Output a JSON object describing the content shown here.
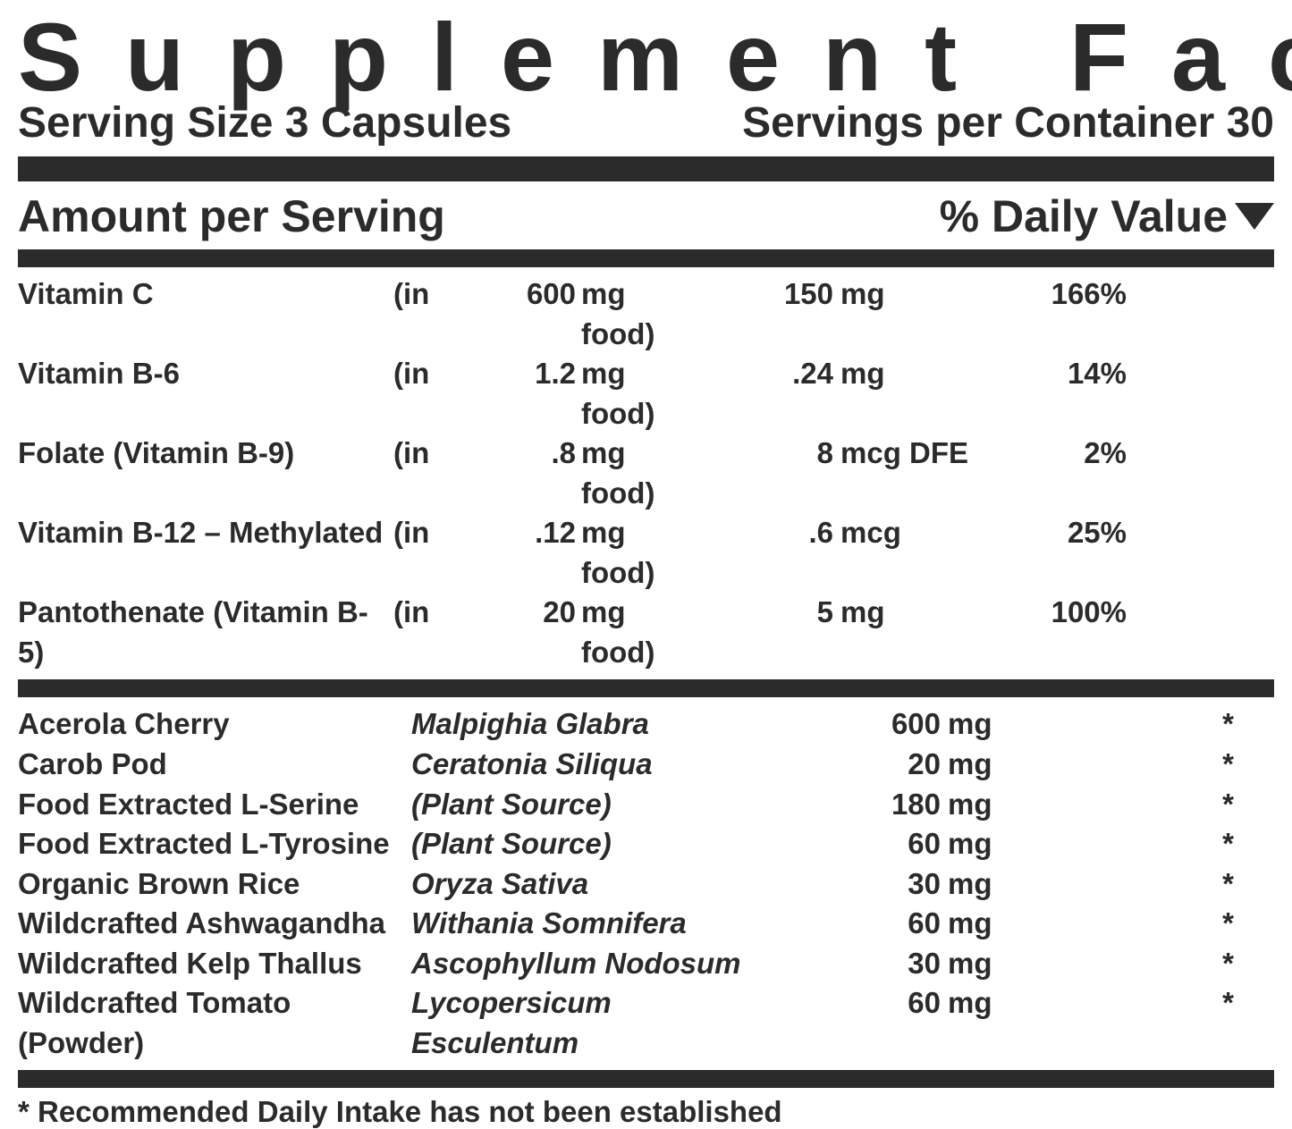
{
  "title": "Supplement Facts",
  "serving_size_label": "Serving Size 3 Capsules",
  "servings_per_container_label": "Servings per Container 30",
  "amount_per_serving_label": "Amount per Serving",
  "daily_value_label": "% Daily Value",
  "nutrients": [
    {
      "name": "Vitamin C",
      "in": "(in",
      "food_amount": "600",
      "food_label": "mg food)",
      "amount": "150",
      "unit": "mg",
      "dv": "166%"
    },
    {
      "name": "Vitamin B-6",
      "in": "(in",
      "food_amount": "1.2",
      "food_label": "mg food)",
      "amount": ".24",
      "unit": "mg",
      "dv": "14%"
    },
    {
      "name": "Folate (Vitamin B-9)",
      "in": "(in",
      "food_amount": ".8",
      "food_label": "mg food)",
      "amount": "8",
      "unit": "mcg DFE",
      "dv": "2%"
    },
    {
      "name": "Vitamin B-12 – Methylated",
      "in": "(in",
      "food_amount": ".12",
      "food_label": "mg food)",
      "amount": ".6",
      "unit": "mcg",
      "dv": "25%"
    },
    {
      "name": "Pantothenate (Vitamin B-5)",
      "in": "(in",
      "food_amount": "20",
      "food_label": "mg food)",
      "amount": "5",
      "unit": "mg",
      "dv": "100%"
    }
  ],
  "ingredients": [
    {
      "name": "Acerola Cherry",
      "latin": "Malpighia Glabra",
      "amount": "600",
      "unit": "mg",
      "dv": "*"
    },
    {
      "name": "Carob Pod",
      "latin": "Ceratonia Siliqua",
      "amount": "20",
      "unit": "mg",
      "dv": "*"
    },
    {
      "name": "Food Extracted L-Serine",
      "latin": "(Plant Source)",
      "amount": "180",
      "unit": "mg",
      "dv": "*"
    },
    {
      "name": "Food Extracted L-Tyrosine",
      "latin": "(Plant Source)",
      "amount": "60",
      "unit": "mg",
      "dv": "*"
    },
    {
      "name": "Organic Brown Rice",
      "latin": "Oryza Sativa",
      "amount": "30",
      "unit": "mg",
      "dv": "*"
    },
    {
      "name": "Wildcrafted Ashwagandha",
      "latin": "Withania Somnifera",
      "amount": "60",
      "unit": "mg",
      "dv": "*"
    },
    {
      "name": "Wildcrafted Kelp Thallus",
      "latin": "Ascophyllum Nodosum",
      "amount": "30",
      "unit": "mg",
      "dv": "*"
    },
    {
      "name": "Wildcrafted Tomato (Powder)",
      "latin": "Lycopersicum Esculentum",
      "amount": "60",
      "unit": "mg",
      "dv": "*"
    }
  ],
  "footnote": "* Recommended Daily Intake has not been established",
  "colors": {
    "text": "#2b2b2b",
    "background": "#ffffff"
  }
}
